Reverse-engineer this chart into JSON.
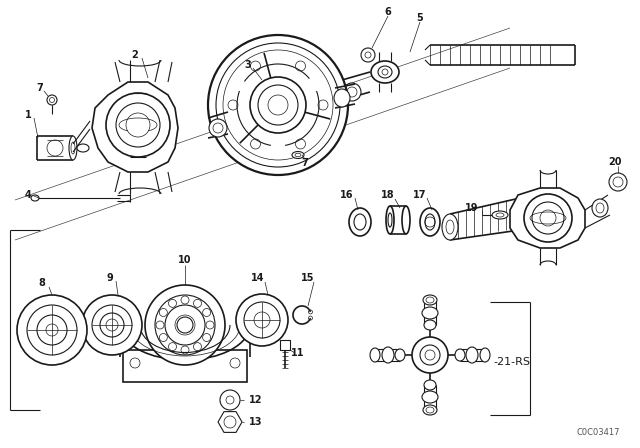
{
  "bg_color": "#ffffff",
  "line_color": "#1a1a1a",
  "fig_width": 6.4,
  "fig_height": 4.48,
  "dpi": 100,
  "watermark": "C0C03417",
  "label_rs": "-21-RS"
}
